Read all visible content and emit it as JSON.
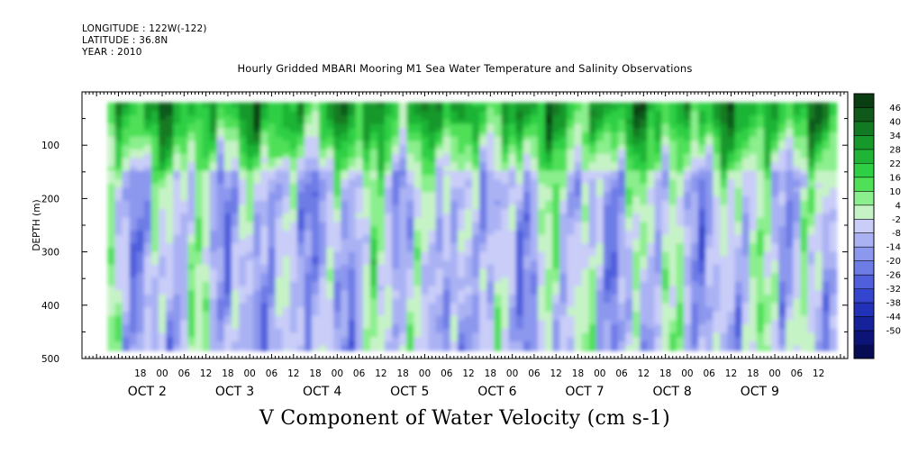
{
  "header": {
    "longitude": "LONGITUDE : 122W(-122)",
    "latitude": "LATITUDE : 36.8N",
    "year": "YEAR : 2010"
  },
  "chart_data": {
    "type": "heatmap",
    "title": "Hourly Gridded MBARI Mooring M1 Sea Water Temperature and Salinity Observations",
    "main_label": "V Component of Water Velocity (cm s-1)",
    "ylabel": "DEPTH (m)",
    "ylim": [
      500,
      0
    ],
    "y_ticks": [
      100,
      200,
      300,
      400,
      500
    ],
    "x_hour_labels": [
      "18",
      "00",
      "06",
      "12",
      "18",
      "00",
      "06",
      "12",
      "18",
      "00",
      "06",
      "12",
      "18",
      "00",
      "06",
      "12",
      "18",
      "00",
      "06",
      "12",
      "18",
      "00",
      "06",
      "12",
      "18",
      "00",
      "06",
      "12",
      "18",
      "00",
      "06",
      "12"
    ],
    "x_hours_from_oct1_00": [
      18,
      24,
      30,
      36,
      42,
      48,
      54,
      60,
      66,
      72,
      78,
      84,
      90,
      96,
      102,
      108,
      114,
      120,
      126,
      132,
      138,
      144,
      150,
      156,
      162,
      168,
      174,
      180,
      186,
      192,
      198,
      204
    ],
    "x_day_labels": [
      {
        "month": "OCT",
        "day": "2",
        "hour": 24
      },
      {
        "month": "OCT",
        "day": "3",
        "hour": 48
      },
      {
        "month": "OCT",
        "day": "4",
        "hour": 72
      },
      {
        "month": "OCT",
        "day": "5",
        "hour": 96
      },
      {
        "month": "OCT",
        "day": "6",
        "hour": 120
      },
      {
        "month": "OCT",
        "day": "7",
        "hour": 144
      },
      {
        "month": "OCT",
        "day": "8",
        "hour": 168
      },
      {
        "month": "OCT",
        "day": "9",
        "hour": 192
      }
    ],
    "data_extent": {
      "hour_start": 9,
      "hour_end": 209,
      "depth_top": 20,
      "depth_bottom": 485
    },
    "colorbar": {
      "labels": [
        "46",
        "40",
        "34",
        "28",
        "22",
        "16",
        "10",
        "4",
        "-2",
        "-8",
        "-14",
        "-20",
        "-26",
        "-32",
        "-38",
        "-44",
        "-50"
      ],
      "colors": [
        "#0b3d12",
        "#0f5a1a",
        "#127a22",
        "#17982b",
        "#1fb436",
        "#2fcf45",
        "#4fe058",
        "#8aef8c",
        "#c6f3c6",
        "#c9cdf8",
        "#aab2f4",
        "#8c97ee",
        "#6e7ce6",
        "#505fdc",
        "#3546ce",
        "#2232b8",
        "#16229a",
        "#0c1577",
        "#070c55"
      ]
    }
  }
}
